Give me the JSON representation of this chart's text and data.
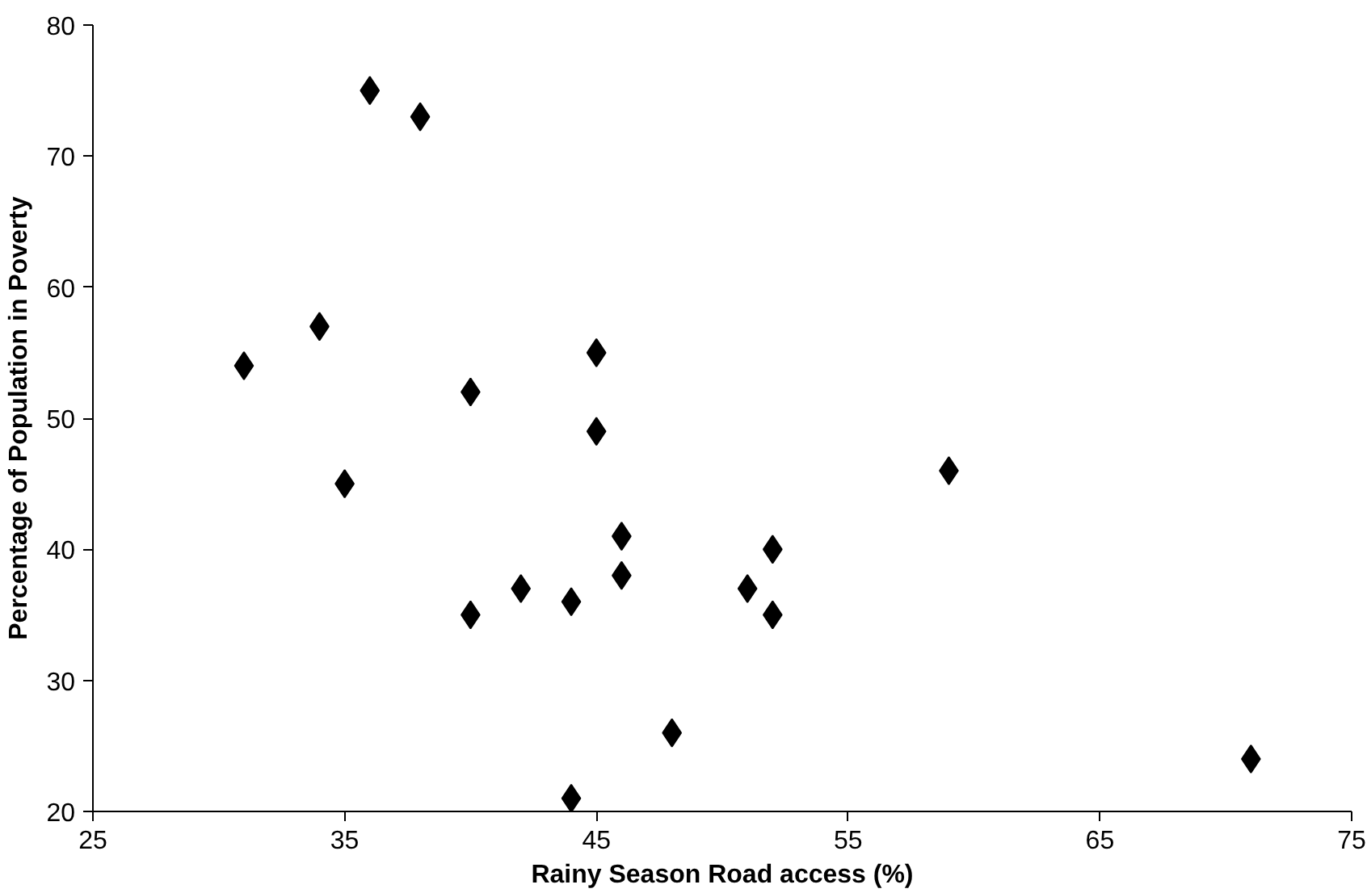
{
  "chart_data": {
    "type": "scatter",
    "xlabel": "Rainy Season Road access (%)",
    "ylabel": "Percentage of Population in Poverty",
    "x": [
      36,
      38,
      34,
      31,
      35,
      40,
      40,
      42,
      44,
      44,
      45,
      45,
      46,
      46,
      48,
      51,
      52,
      52,
      59,
      71
    ],
    "values": [
      75,
      73,
      57,
      54,
      45,
      52,
      35,
      37,
      36,
      21,
      55,
      49,
      41,
      38,
      26,
      37,
      40,
      35,
      46,
      24
    ],
    "color": "#000000",
    "marker": "diamond",
    "xlim": [
      25,
      75
    ],
    "xticks": [
      25,
      35,
      45,
      55,
      65,
      75
    ],
    "ylim": [
      20,
      80
    ],
    "yticks": [
      20,
      30,
      40,
      50,
      60,
      70,
      80
    ],
    "grid": false
  }
}
